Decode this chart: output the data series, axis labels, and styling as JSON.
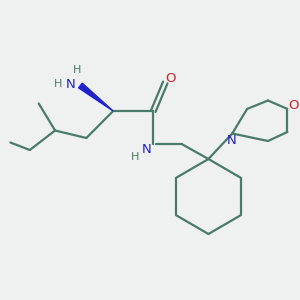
{
  "background_color": "#eff1f1",
  "bond_color": "#4a7a6a",
  "n_color": "#2222cc",
  "o_color": "#cc2222",
  "text_color": "#4a7a6a",
  "figsize": [
    3.0,
    3.0
  ],
  "dpi": 100,
  "xlim": [
    0,
    10
  ],
  "ylim": [
    0,
    10
  ]
}
